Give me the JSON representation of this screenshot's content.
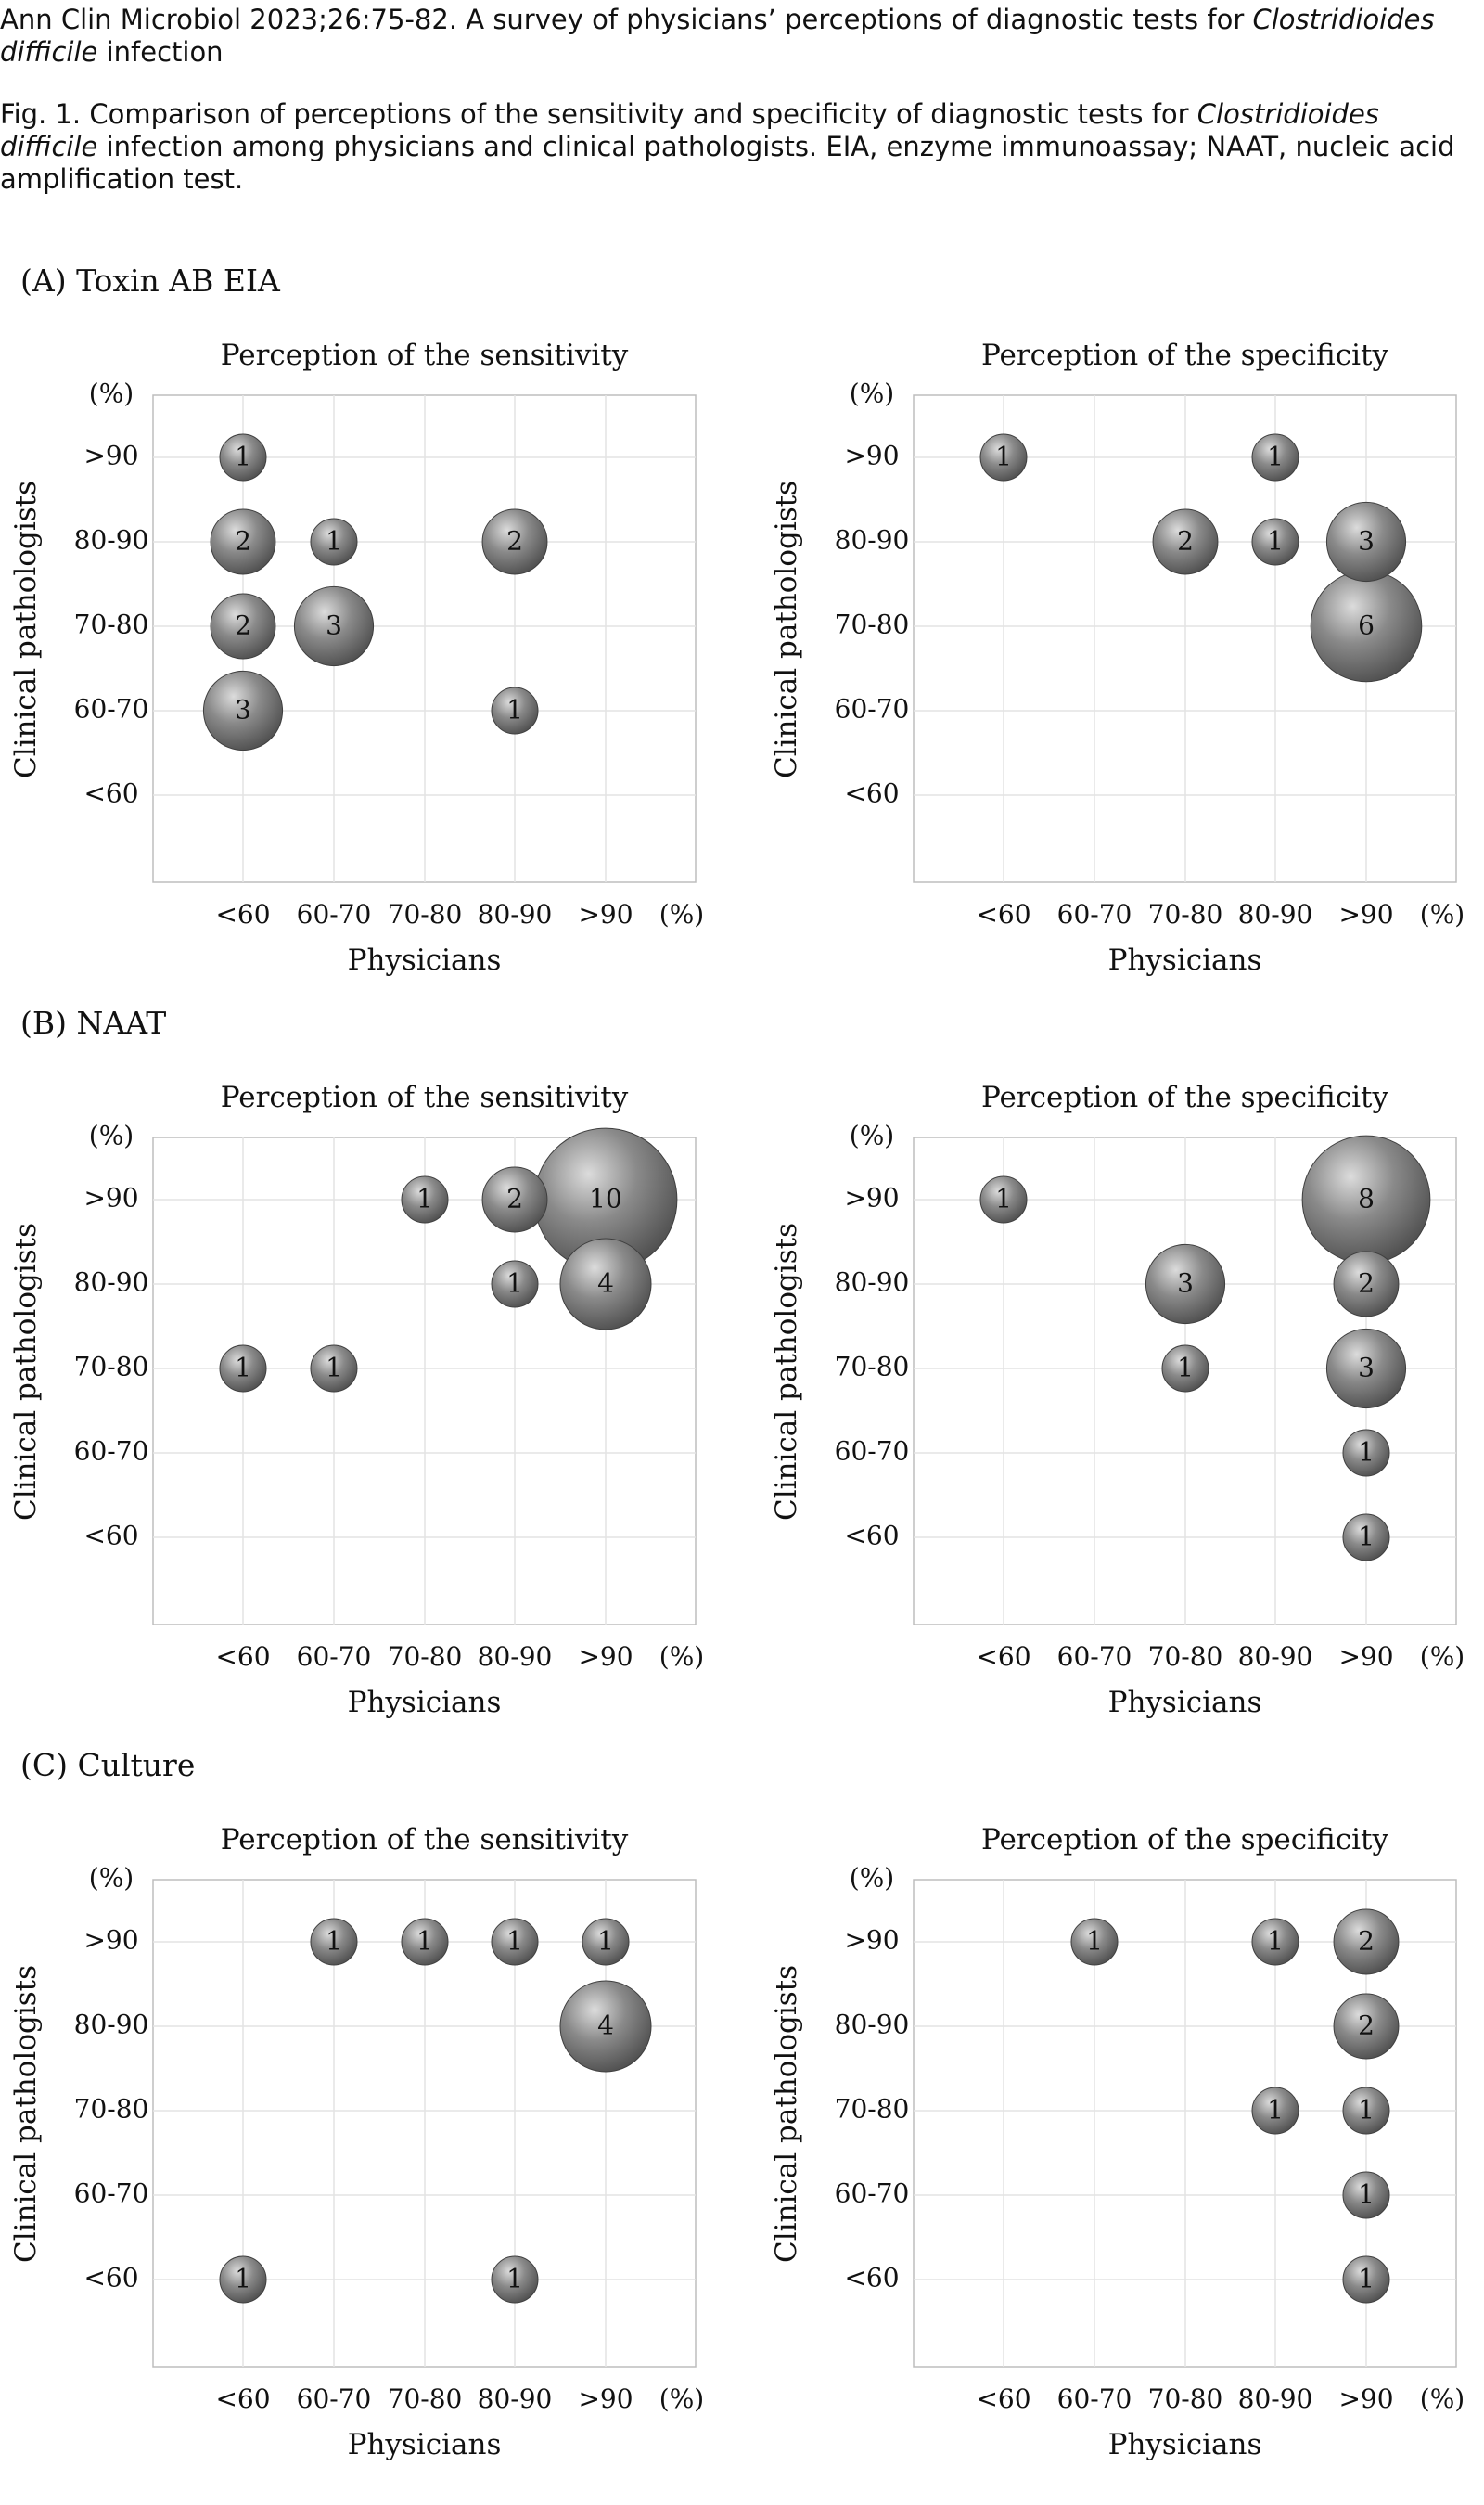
{
  "header": {
    "citation": "Ann Clin Microbiol 2023;26:75-82. A survey of physicians’ perceptions of diagnostic tests for ",
    "citation_italic": "Clostridioides difficile",
    "citation_end": " infection",
    "caption": "Fig. 1. Comparison of perceptions of the sensitivity and specificity of diagnostic tests for ",
    "caption_italic": "Clostridioides difficile",
    "caption_end": " infection among physicians and clinical pathologists. EIA, enzyme immunoassay; NAAT, nucleic acid amplification test."
  },
  "panels": [
    {
      "label": "(A) Toxin AB EIA"
    },
    {
      "label": "(B) NAAT"
    },
    {
      "label": "(C) Culture"
    }
  ],
  "chart_data": [
    {
      "type": "scatter",
      "panel": "(A) Toxin AB EIA",
      "title": "Perception of the sensitivity",
      "xlabel": "Physicians",
      "ylabel": "Clinical pathologists",
      "unit": "(%)",
      "x_categories": [
        "<60",
        "60-70",
        "70-80",
        "80-90",
        ">90"
      ],
      "y_categories": [
        "<60",
        "60-70",
        "70-80",
        "80-90",
        ">90"
      ],
      "points": [
        {
          "x": "<60",
          "y": ">90",
          "n": 1
        },
        {
          "x": "<60",
          "y": "80-90",
          "n": 2
        },
        {
          "x": "60-70",
          "y": "80-90",
          "n": 1
        },
        {
          "x": "80-90",
          "y": "80-90",
          "n": 2
        },
        {
          "x": "<60",
          "y": "70-80",
          "n": 2
        },
        {
          "x": "60-70",
          "y": "70-80",
          "n": 3
        },
        {
          "x": "<60",
          "y": "60-70",
          "n": 3
        },
        {
          "x": "80-90",
          "y": "60-70",
          "n": 1
        }
      ]
    },
    {
      "type": "scatter",
      "panel": "(A) Toxin AB EIA",
      "title": "Perception of the specificity",
      "xlabel": "Physicians",
      "ylabel": "Clinical pathologists",
      "unit": "(%)",
      "x_categories": [
        "<60",
        "60-70",
        "70-80",
        "80-90",
        ">90"
      ],
      "y_categories": [
        "<60",
        "60-70",
        "70-80",
        "80-90",
        ">90"
      ],
      "points": [
        {
          "x": "<60",
          "y": ">90",
          "n": 1
        },
        {
          "x": "80-90",
          "y": ">90",
          "n": 1
        },
        {
          "x": "70-80",
          "y": "80-90",
          "n": 2
        },
        {
          "x": "80-90",
          "y": "80-90",
          "n": 1
        },
        {
          "x": ">90",
          "y": "80-90",
          "n": 3
        },
        {
          "x": ">90",
          "y": "70-80",
          "n": 6
        }
      ]
    },
    {
      "type": "scatter",
      "panel": "(B) NAAT",
      "title": "Perception of the sensitivity",
      "xlabel": "Physicians",
      "ylabel": "Clinical pathologists",
      "unit": "(%)",
      "x_categories": [
        "<60",
        "60-70",
        "70-80",
        "80-90",
        ">90"
      ],
      "y_categories": [
        "<60",
        "60-70",
        "70-80",
        "80-90",
        ">90"
      ],
      "points": [
        {
          "x": "70-80",
          "y": ">90",
          "n": 1
        },
        {
          "x": "80-90",
          "y": ">90",
          "n": 2
        },
        {
          "x": ">90",
          "y": ">90",
          "n": 10
        },
        {
          "x": "80-90",
          "y": "80-90",
          "n": 1
        },
        {
          "x": ">90",
          "y": "80-90",
          "n": 4
        },
        {
          "x": "<60",
          "y": "70-80",
          "n": 1
        },
        {
          "x": "60-70",
          "y": "70-80",
          "n": 1
        }
      ]
    },
    {
      "type": "scatter",
      "panel": "(B) NAAT",
      "title": "Perception of the specificity",
      "xlabel": "Physicians",
      "ylabel": "Clinical pathologists",
      "unit": "(%)",
      "x_categories": [
        "<60",
        "60-70",
        "70-80",
        "80-90",
        ">90"
      ],
      "y_categories": [
        "<60",
        "60-70",
        "70-80",
        "80-90",
        ">90"
      ],
      "points": [
        {
          "x": "<60",
          "y": ">90",
          "n": 1
        },
        {
          "x": ">90",
          "y": ">90",
          "n": 8
        },
        {
          "x": "70-80",
          "y": "80-90",
          "n": 3
        },
        {
          "x": ">90",
          "y": "80-90",
          "n": 2
        },
        {
          "x": "70-80",
          "y": "70-80",
          "n": 1
        },
        {
          "x": ">90",
          "y": "70-80",
          "n": 3
        },
        {
          "x": ">90",
          "y": "60-70",
          "n": 1
        },
        {
          "x": ">90",
          "y": "<60",
          "n": 1
        }
      ]
    },
    {
      "type": "scatter",
      "panel": "(C) Culture",
      "title": "Perception of the sensitivity",
      "xlabel": "Physicians",
      "ylabel": "Clinical pathologists",
      "unit": "(%)",
      "x_categories": [
        "<60",
        "60-70",
        "70-80",
        "80-90",
        ">90"
      ],
      "y_categories": [
        "<60",
        "60-70",
        "70-80",
        "80-90",
        ">90"
      ],
      "points": [
        {
          "x": "60-70",
          "y": ">90",
          "n": 1
        },
        {
          "x": "70-80",
          "y": ">90",
          "n": 1
        },
        {
          "x": "80-90",
          "y": ">90",
          "n": 1
        },
        {
          "x": ">90",
          "y": ">90",
          "n": 1
        },
        {
          "x": ">90",
          "y": "80-90",
          "n": 4
        },
        {
          "x": "<60",
          "y": "<60",
          "n": 1
        },
        {
          "x": "80-90",
          "y": "<60",
          "n": 1
        }
      ]
    },
    {
      "type": "scatter",
      "panel": "(C) Culture",
      "title": "Perception of the specificity",
      "xlabel": "Physicians",
      "ylabel": "Clinical pathologists",
      "unit": "(%)",
      "x_categories": [
        "<60",
        "60-70",
        "70-80",
        "80-90",
        ">90"
      ],
      "y_categories": [
        "<60",
        "60-70",
        "70-80",
        "80-90",
        ">90"
      ],
      "points": [
        {
          "x": "60-70",
          "y": ">90",
          "n": 1
        },
        {
          "x": "80-90",
          "y": ">90",
          "n": 1
        },
        {
          "x": ">90",
          "y": ">90",
          "n": 2
        },
        {
          "x": ">90",
          "y": "80-90",
          "n": 2
        },
        {
          "x": "80-90",
          "y": "70-80",
          "n": 1
        },
        {
          "x": ">90",
          "y": "70-80",
          "n": 1
        },
        {
          "x": ">90",
          "y": "60-70",
          "n": 1
        },
        {
          "x": ">90",
          "y": "<60",
          "n": 1
        }
      ]
    }
  ]
}
